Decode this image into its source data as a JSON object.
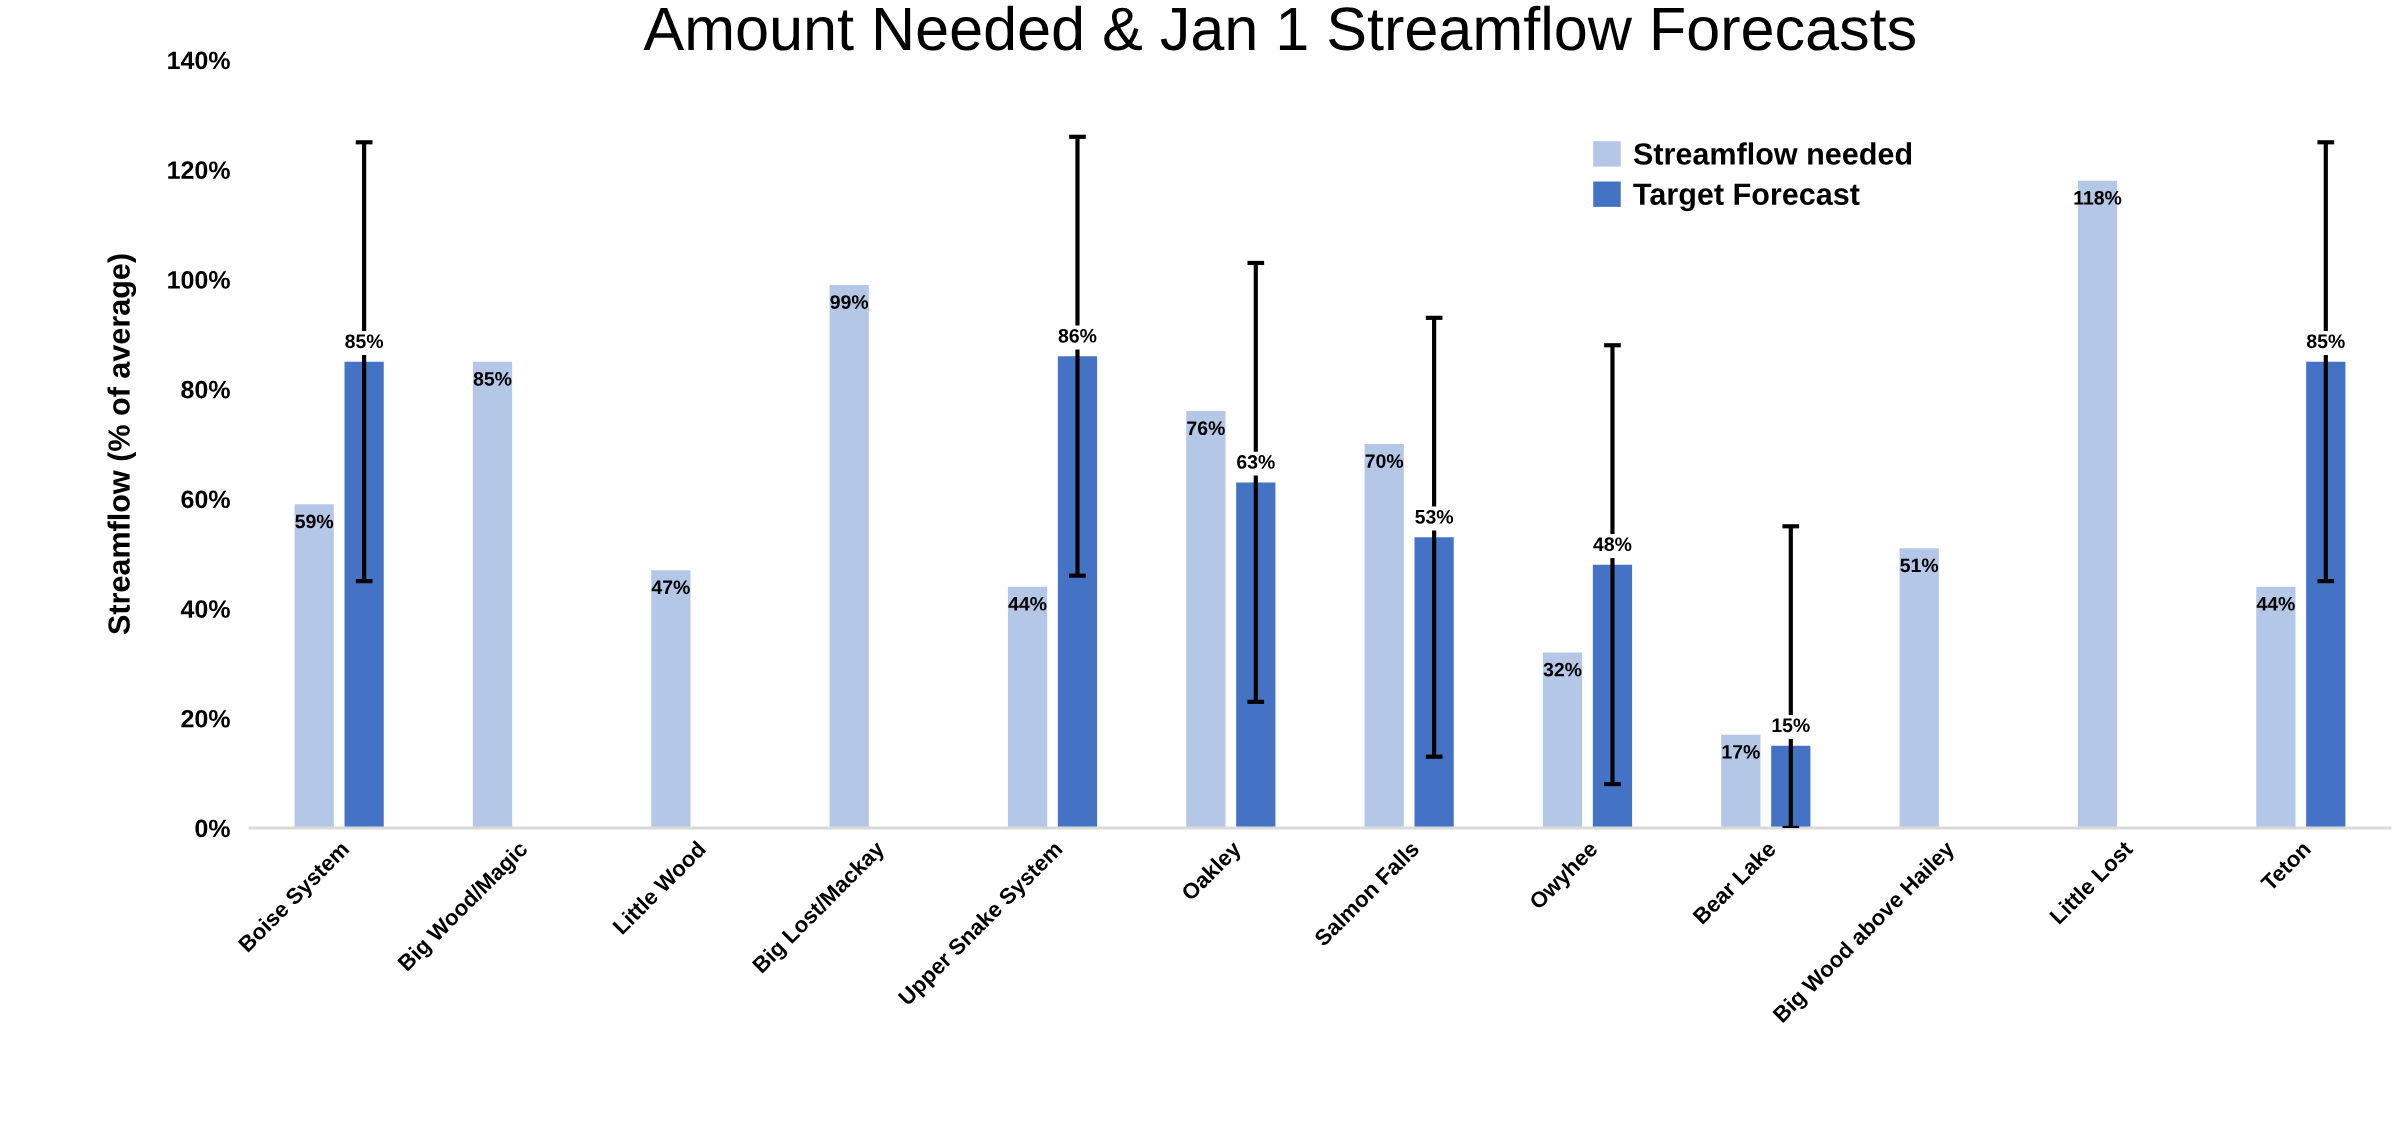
{
  "chart_data": {
    "type": "bar",
    "title": "Amount Needed & Jan 1 Streamflow Forecasts",
    "ylabel": "Streamflow (% of average)",
    "categories": [
      "Boise System",
      "Big Wood/Magic",
      "Little Wood",
      "Big Lost/Mackay",
      "Upper Snake System",
      "Oakley",
      "Salmon Falls",
      "Owyhee",
      "Bear Lake",
      "Big Wood above Hailey",
      "Little Lost",
      "Teton"
    ],
    "series": [
      {
        "name": "Streamflow needed",
        "color": "#b4c7e7",
        "values": [
          59,
          85,
          47,
          99,
          44,
          76,
          70,
          32,
          17,
          51,
          118,
          44
        ],
        "value_labels": [
          "59%",
          "85%",
          "47%",
          "99%",
          "44%",
          "76%",
          "70%",
          "32%",
          "17%",
          "51%",
          "118%",
          "44%"
        ]
      },
      {
        "name": "Target Forecast",
        "color": "#4472c4",
        "values": [
          85,
          null,
          null,
          null,
          86,
          63,
          53,
          48,
          15,
          null,
          null,
          85
        ],
        "value_labels": [
          "85%",
          null,
          null,
          null,
          "86%",
          "63%",
          "53%",
          "48%",
          "15%",
          null,
          null,
          "85%"
        ],
        "errors": [
          40,
          null,
          null,
          null,
          40,
          40,
          40,
          40,
          [
            0,
            55
          ],
          null,
          null,
          40
        ]
      }
    ],
    "ylim": [
      0,
      140
    ],
    "yticks": [
      {
        "value": 0,
        "label": "0%"
      },
      {
        "value": 20,
        "label": "20%"
      },
      {
        "value": 40,
        "label": "40%"
      },
      {
        "value": 60,
        "label": "60%"
      },
      {
        "value": 80,
        "label": "80%"
      },
      {
        "value": 100,
        "label": "100%"
      },
      {
        "value": 120,
        "label": "120%"
      },
      {
        "value": 140,
        "label": "140%"
      }
    ],
    "legend": "top right"
  }
}
